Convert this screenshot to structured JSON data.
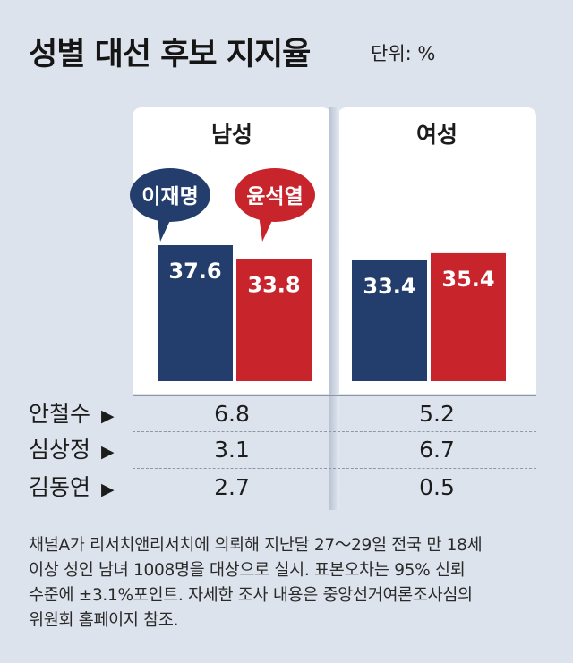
{
  "title": "성별 대선 후보 지지율",
  "unit": "단위: %",
  "colors": {
    "lee": "#233e6d",
    "yoon": "#c8242c"
  },
  "chart_data": {
    "type": "bar",
    "categories": [
      "남성",
      "여성"
    ],
    "series": [
      {
        "name": "이재명",
        "values": [
          37.6,
          33.4
        ]
      },
      {
        "name": "윤석열",
        "values": [
          33.8,
          35.4
        ]
      }
    ],
    "other_candidates": [
      {
        "name": "안철수",
        "values": [
          "6.8",
          "5.2"
        ]
      },
      {
        "name": "심상정",
        "values": [
          "3.1",
          "6.7"
        ]
      },
      {
        "name": "김동연",
        "values": [
          "2.7",
          "0.5"
        ]
      }
    ]
  },
  "footnote": "채널A가 리서치앤리서치에 의뢰해 지난달 27～29일 전국 만 18세\n이상 성인 남녀 1008명을 대상으로 실시. 표본오차는 95% 신뢰\n수준에 ±3.1%포인트. 자세한 조사 내용은 중앙선거여론조사심의\n위원회 홈페이지 참조."
}
